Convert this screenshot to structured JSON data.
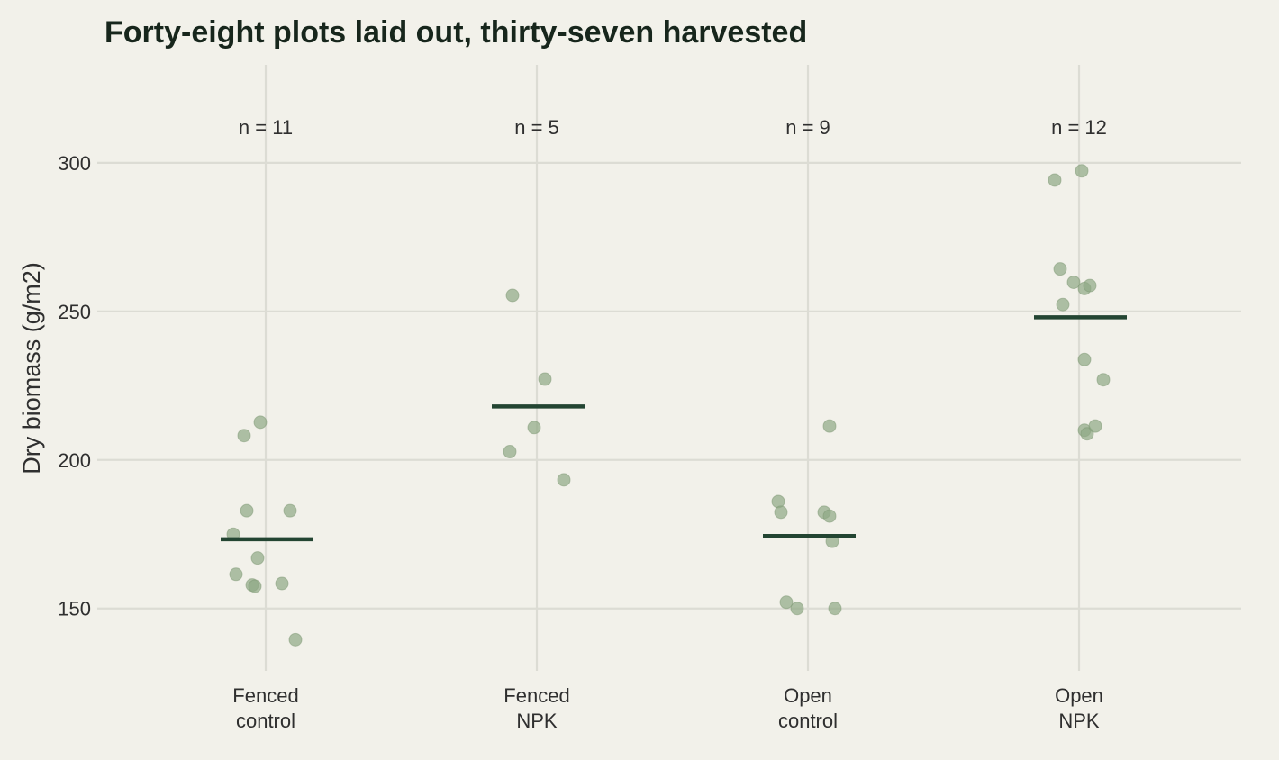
{
  "title": "Forty-eight plots laid out, thirty-seven harvested",
  "colors": {
    "background": "#f2f1ea",
    "point": "#8fa884",
    "mean": "#234532",
    "grid": "#dcdcd4",
    "title": "#17261c"
  },
  "chart_data": {
    "type": "scatter",
    "title": "Forty-eight plots laid out, thirty-seven harvested",
    "xlabel": "",
    "ylabel": "Dry biomass (g/m2)",
    "ylim": [
      129,
      333
    ],
    "yticks": [
      150,
      200,
      250,
      300
    ],
    "grid": true,
    "legend": "none",
    "categories": [
      {
        "label": [
          "Fenced",
          "control"
        ],
        "n_label": "n = 11",
        "mean": 173.3,
        "points": [
          {
            "jitter": -0.12,
            "y": 175.0
          },
          {
            "jitter": -0.08,
            "y": 208.2
          },
          {
            "jitter": -0.07,
            "y": 182.9
          },
          {
            "jitter": -0.11,
            "y": 161.5
          },
          {
            "jitter": -0.05,
            "y": 157.9
          },
          {
            "jitter": -0.04,
            "y": 157.5
          },
          {
            "jitter": -0.03,
            "y": 167.0
          },
          {
            "jitter": -0.02,
            "y": 212.7
          },
          {
            "jitter": 0.06,
            "y": 158.4
          },
          {
            "jitter": 0.09,
            "y": 182.9
          },
          {
            "jitter": 0.11,
            "y": 139.5
          }
        ]
      },
      {
        "label": [
          "Fenced",
          "NPK"
        ],
        "n_label": "n = 5",
        "mean": 218.0,
        "points": [
          {
            "jitter": -0.1,
            "y": 202.8
          },
          {
            "jitter": -0.09,
            "y": 255.4
          },
          {
            "jitter": -0.01,
            "y": 210.9
          },
          {
            "jitter": 0.03,
            "y": 227.2
          },
          {
            "jitter": 0.1,
            "y": 193.3
          }
        ]
      },
      {
        "label": [
          "Open",
          "control"
        ],
        "n_label": "n = 9",
        "mean": 174.4,
        "points": [
          {
            "jitter": -0.11,
            "y": 186.0
          },
          {
            "jitter": -0.1,
            "y": 182.4
          },
          {
            "jitter": -0.08,
            "y": 152.1
          },
          {
            "jitter": -0.04,
            "y": 150.0
          },
          {
            "jitter": 0.06,
            "y": 182.4
          },
          {
            "jitter": 0.08,
            "y": 181.1
          },
          {
            "jitter": 0.08,
            "y": 211.4
          },
          {
            "jitter": 0.09,
            "y": 172.6
          },
          {
            "jitter": 0.1,
            "y": 150.0
          }
        ]
      },
      {
        "label": [
          "Open",
          "NPK"
        ],
        "n_label": "n = 12",
        "mean": 248.0,
        "points": [
          {
            "jitter": -0.09,
            "y": 294.2
          },
          {
            "jitter": -0.07,
            "y": 264.3
          },
          {
            "jitter": -0.06,
            "y": 252.3
          },
          {
            "jitter": -0.02,
            "y": 259.8
          },
          {
            "jitter": 0.01,
            "y": 297.3
          },
          {
            "jitter": 0.02,
            "y": 233.8
          },
          {
            "jitter": 0.02,
            "y": 210.0
          },
          {
            "jitter": 0.02,
            "y": 257.7
          },
          {
            "jitter": 0.03,
            "y": 208.8
          },
          {
            "jitter": 0.04,
            "y": 258.7
          },
          {
            "jitter": 0.06,
            "y": 211.4
          },
          {
            "jitter": 0.09,
            "y": 227.0
          }
        ]
      }
    ]
  }
}
